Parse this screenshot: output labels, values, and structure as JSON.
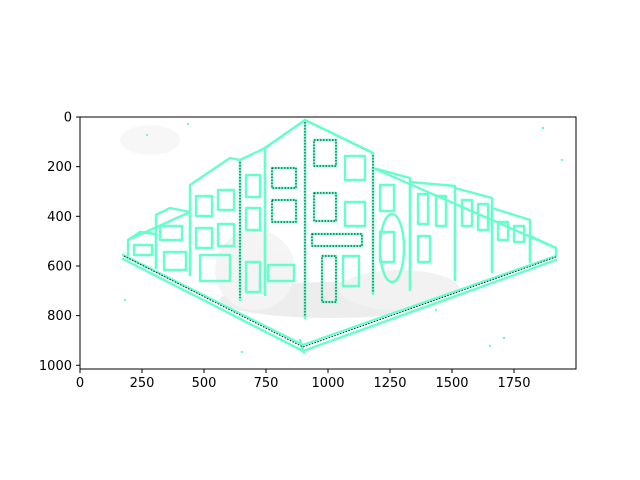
{
  "figure": {
    "image_description_icon": "perspective-street-corner-sketch-icon",
    "colors": {
      "line": "#66ffcc",
      "dark_line": "#111111",
      "haze": "#d9d9d9",
      "axis": "#000000"
    }
  },
  "axes": {
    "x_ticks": [
      {
        "value": 0,
        "label": "0"
      },
      {
        "value": 250,
        "label": "250"
      },
      {
        "value": 500,
        "label": "500"
      },
      {
        "value": 750,
        "label": "750"
      },
      {
        "value": 1000,
        "label": "1000"
      },
      {
        "value": 1250,
        "label": "1250"
      },
      {
        "value": 1500,
        "label": "1500"
      },
      {
        "value": 1750,
        "label": "1750"
      }
    ],
    "y_ticks": [
      {
        "value": 0,
        "label": "0"
      },
      {
        "value": 200,
        "label": "200"
      },
      {
        "value": 400,
        "label": "400"
      },
      {
        "value": 600,
        "label": "600"
      },
      {
        "value": 800,
        "label": "800"
      },
      {
        "value": 1000,
        "label": "1000"
      }
    ],
    "x_range": [
      0,
      2000
    ],
    "y_range": [
      1015,
      0
    ]
  }
}
